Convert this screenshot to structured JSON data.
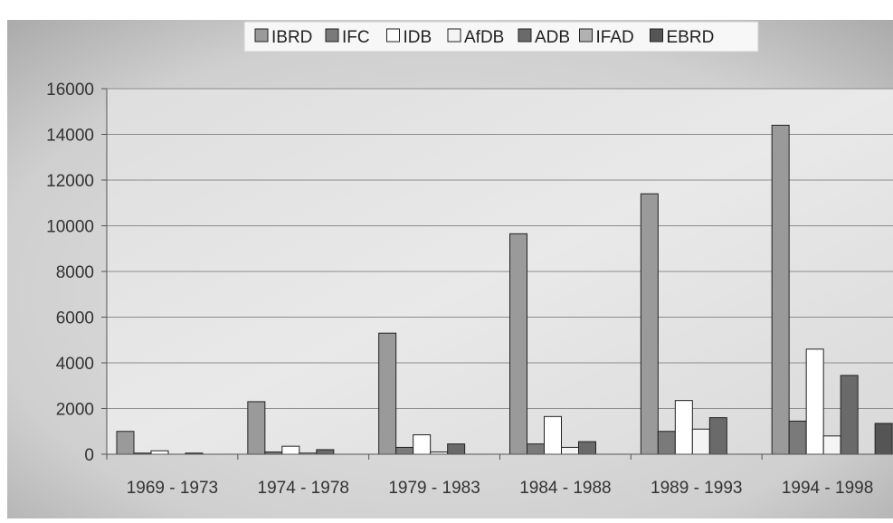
{
  "chart_data": {
    "type": "bar",
    "title": "",
    "xlabel": "",
    "ylabel": "",
    "ylim": [
      0,
      16000
    ],
    "yticks": [
      0,
      2000,
      4000,
      6000,
      8000,
      10000,
      12000,
      14000,
      16000
    ],
    "grid": true,
    "legend_position": "top",
    "categories": [
      "1969 - 1973",
      "1974 - 1978",
      "1979 - 1983",
      "1984 - 1988",
      "1989 - 1993",
      "1994 - 1998"
    ],
    "series": [
      {
        "name": "IBRD",
        "color": "#9a9a9a",
        "values": [
          1000,
          2300,
          5300,
          9650,
          11400,
          14400
        ]
      },
      {
        "name": "IFC",
        "color": "#7a7a7a",
        "values": [
          50,
          100,
          300,
          450,
          1000,
          1450
        ]
      },
      {
        "name": "IDB",
        "color": "#ffffff",
        "values": [
          150,
          350,
          850,
          1650,
          2350,
          4600
        ]
      },
      {
        "name": "AfDB",
        "color": "#f4f4f4",
        "values": [
          0,
          50,
          100,
          300,
          1100,
          800
        ]
      },
      {
        "name": "ADB",
        "color": "#6a6a6a",
        "values": [
          50,
          200,
          450,
          550,
          1600,
          3450
        ]
      },
      {
        "name": "IFAD",
        "color": "#b2b2b2",
        "values": [
          0,
          0,
          0,
          0,
          0,
          0
        ]
      },
      {
        "name": "EBRD",
        "color": "#555555",
        "values": [
          0,
          0,
          0,
          0,
          0,
          1350
        ]
      }
    ]
  }
}
